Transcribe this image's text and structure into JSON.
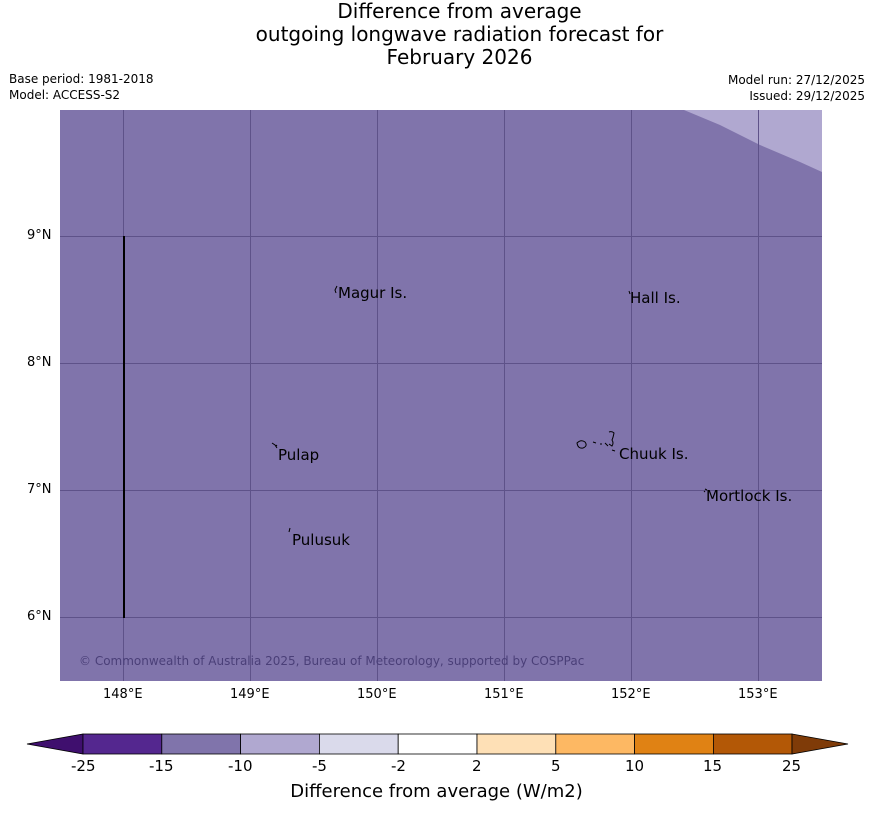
{
  "title": {
    "line1": "Difference from average",
    "line2": "outgoing longwave radiation forecast for",
    "line3": "February 2026"
  },
  "meta": {
    "base_period": "Base period: 1981-2018",
    "model": "Model: ACCESS-S2",
    "model_run": "Model run: 27/12/2025",
    "issued": "Issued: 29/12/2025"
  },
  "map": {
    "background_color": "#8074ab",
    "light_region_color": "#b0a8d0",
    "gridline_color": "#5e5289",
    "longitude_labels": [
      "148°E",
      "149°E",
      "150°E",
      "151°E",
      "152°E",
      "153°E"
    ],
    "latitude_labels": [
      "9°N",
      "8°N",
      "7°N",
      "6°N"
    ],
    "place_labels": {
      "magur": "Magur Is.",
      "hall": "Hall Is.",
      "pulap": "Pulap",
      "chuuk": "Chuuk Is.",
      "mortlock": "Mortlock Is.",
      "pulusuk": "Pulusuk"
    },
    "copyright": "© Commonwealth of Australia 2025, Bureau of Meteorology, supported by COSPPac"
  },
  "colorbar": {
    "title": "Difference from average (W/m2)",
    "tick_labels": [
      "-25",
      "-15",
      "-10",
      "-5",
      "-2",
      "2",
      "5",
      "10",
      "15",
      "25"
    ],
    "colors": [
      "#3f0f6e",
      "#54278f",
      "#8074ab",
      "#b0a8d0",
      "#dadaeb",
      "#ffffff",
      "#fee0b6",
      "#fdb863",
      "#e08214",
      "#b35806",
      "#7f3b08"
    ]
  }
}
